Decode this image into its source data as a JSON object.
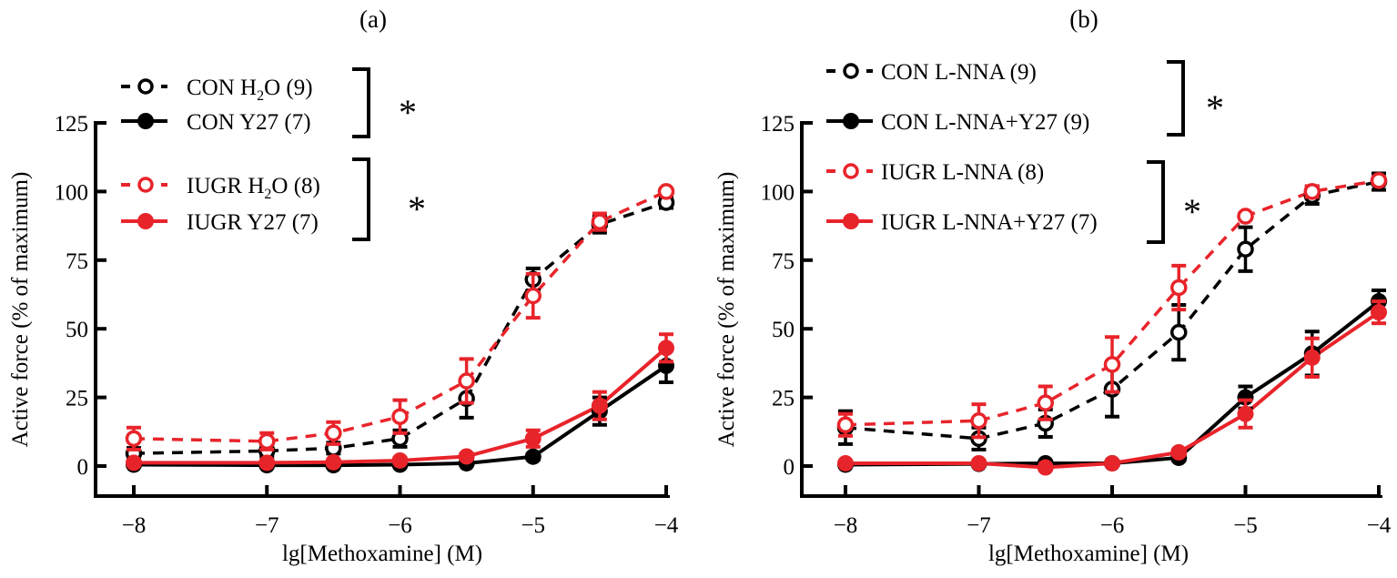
{
  "chart_data": [
    {
      "type": "line",
      "title": "(a)",
      "xlabel": "lg[Methoxamine] (M)",
      "ylabel": "Active force (% of maximum)",
      "xlim": [
        -8.3,
        -4
      ],
      "ylim": [
        -11,
        125
      ],
      "xticks": [
        -8,
        -7,
        -6,
        -5,
        -4
      ],
      "xtick_labels": [
        "−8",
        "−7",
        "−6",
        "−5",
        "−4"
      ],
      "yticks": [
        0,
        25,
        50,
        75,
        100,
        125
      ],
      "ytick_labels": [
        "0",
        "25",
        "50",
        "75",
        "100",
        "125"
      ],
      "grid": false,
      "legend_position": "top-left",
      "x": [
        -8,
        -7,
        -6.5,
        -6,
        -5.5,
        -5,
        -4.5,
        -4
      ],
      "series": [
        {
          "name": "CON H2O (9)",
          "label_main": "CON H",
          "label_sub": "2",
          "label_rest": "O (9)",
          "color": "#000000",
          "marker": "open",
          "line": "dashed",
          "values": [
            4.6,
            5.5,
            6.5,
            10,
            24.6,
            68,
            88,
            96
          ],
          "errors": [
            2,
            2,
            2,
            3,
            7,
            4,
            3,
            2
          ]
        },
        {
          "name": "CON Y27 (7)",
          "label_main": "CON Y27 (7)",
          "label_sub": "",
          "label_rest": "",
          "color": "#000000",
          "marker": "filled",
          "line": "solid",
          "values": [
            0.5,
            0.3,
            0.3,
            0.5,
            1,
            3.4,
            20,
            36.5
          ],
          "errors": [
            0.5,
            0.5,
            0.5,
            0.5,
            0.5,
            1,
            5,
            6
          ]
        },
        {
          "name": "IUGR H2O (8)",
          "label_main": "IUGR H",
          "label_sub": "2",
          "label_rest": "O (8)",
          "color": "#e8242b",
          "marker": "open",
          "line": "dashed",
          "values": [
            10,
            9,
            12,
            18,
            31,
            62,
            89,
            100
          ],
          "errors": [
            4,
            3,
            4,
            6,
            8,
            8,
            3,
            1
          ]
        },
        {
          "name": "IUGR Y27 (7)",
          "label_main": "IUGR Y27 (7)",
          "label_sub": "",
          "label_rest": "",
          "color": "#e8242b",
          "marker": "filled",
          "line": "solid",
          "values": [
            1.2,
            1.2,
            1.4,
            2,
            3.5,
            10,
            22,
            43
          ],
          "errors": [
            0.5,
            0.5,
            0.5,
            0.5,
            1,
            3,
            5,
            5
          ]
        }
      ],
      "significance": [
        {
          "groups": [
            "CON H2O (9)",
            "CON Y27 (7)"
          ],
          "mark": "*"
        },
        {
          "groups": [
            "IUGR H2O (8)",
            "IUGR Y27 (7)"
          ],
          "mark": "*"
        }
      ]
    },
    {
      "type": "line",
      "title": "(b)",
      "xlabel": "lg[Methoxamine] (M)",
      "ylabel": "Active force (% of maximum)",
      "xlim": [
        -8.3,
        -4
      ],
      "ylim": [
        -11,
        125
      ],
      "xticks": [
        -8,
        -7,
        -6,
        -5,
        -4
      ],
      "xtick_labels": [
        "−8",
        "−7",
        "−6",
        "−5",
        "−4"
      ],
      "yticks": [
        0,
        25,
        50,
        75,
        100,
        125
      ],
      "ytick_labels": [
        "0",
        "25",
        "50",
        "75",
        "100",
        "125"
      ],
      "grid": false,
      "legend_position": "top-left",
      "x": [
        -8,
        -7,
        -6.5,
        -6,
        -5.5,
        -5,
        -4.5,
        -4
      ],
      "series": [
        {
          "name": "CON L-NNA (9)",
          "label_main": "CON L-NNA (9)",
          "label_sub": "",
          "label_rest": "",
          "color": "#000000",
          "marker": "open",
          "line": "dashed",
          "values": [
            14,
            10,
            15.6,
            28,
            48.7,
            79,
            98.5,
            103.6
          ],
          "errors": [
            6,
            4,
            5,
            10,
            10,
            8,
            3,
            3
          ]
        },
        {
          "name": "CON L-NNA+Y27 (9)",
          "label_main": "CON L-NNA+Y27 (9)",
          "label_sub": "",
          "label_rest": "",
          "color": "#000000",
          "marker": "filled",
          "line": "solid",
          "values": [
            0.5,
            0.8,
            1,
            1,
            3,
            25,
            41,
            60
          ],
          "errors": [
            0.5,
            0.5,
            0.5,
            0.5,
            1,
            4,
            8,
            4
          ]
        },
        {
          "name": "IUGR L-NNA (8)",
          "label_main": "IUGR L-NNA (8)",
          "label_sub": "",
          "label_rest": "",
          "color": "#e8242b",
          "marker": "open",
          "line": "dashed",
          "values": [
            15,
            16.5,
            23,
            37,
            65,
            91,
            100,
            104
          ],
          "errors": [
            4,
            6,
            6,
            10,
            8,
            1,
            2,
            1
          ]
        },
        {
          "name": "IUGR L-NNA+Y27 (7)",
          "label_main": "IUGR L-NNA+Y27 (7)",
          "label_sub": "",
          "label_rest": "",
          "color": "#e8242b",
          "marker": "filled",
          "line": "solid",
          "values": [
            1,
            1,
            -0.5,
            1,
            5,
            19,
            39.5,
            56
          ],
          "errors": [
            0.5,
            0.5,
            0.5,
            0.5,
            1,
            5,
            7,
            4
          ]
        }
      ],
      "significance": [
        {
          "groups": [
            "CON L-NNA (9)",
            "CON L-NNA+Y27 (9)"
          ],
          "mark": "*"
        },
        {
          "groups": [
            "IUGR L-NNA (8)",
            "IUGR L-NNA+Y27 (7)"
          ],
          "mark": "*"
        }
      ]
    }
  ]
}
